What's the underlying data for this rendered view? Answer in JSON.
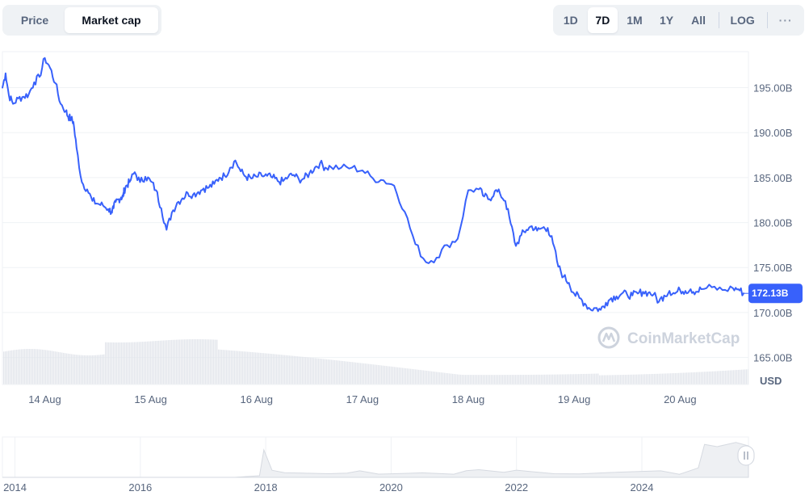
{
  "tabs": {
    "price_label": "Price",
    "market_cap_label": "Market cap"
  },
  "ranges": {
    "d1": "1D",
    "d7": "7D",
    "m1": "1M",
    "y1": "1Y",
    "all": "All",
    "log": "LOG",
    "more": "···"
  },
  "colors": {
    "line": "#3861fb",
    "volume": "#e3e6ec",
    "grid": "#eff2f5"
  },
  "watermark": "CoinMarketCap",
  "currency_unit": "USD",
  "current_value_label": "172.13B",
  "chart_data": [
    {
      "type": "line",
      "ylim": [
        162,
        199
      ],
      "y_ticks": [
        "195.00B",
        "190.00B",
        "185.00B",
        "180.00B",
        "175.00B",
        "170.00B",
        "165.00B"
      ],
      "y_tick_values": [
        195,
        190,
        185,
        180,
        175,
        170,
        165
      ],
      "x_ticks": [
        "14 Aug",
        "15 Aug",
        "16 Aug",
        "17 Aug",
        "18 Aug",
        "19 Aug",
        "20 Aug"
      ],
      "x_tick_positions": [
        0.4,
        1.4,
        2.4,
        3.4,
        4.4,
        5.4,
        6.4
      ],
      "x_range": [
        0,
        7
      ],
      "x": [
        0.0,
        0.03,
        0.06,
        0.1,
        0.15,
        0.2,
        0.25,
        0.3,
        0.35,
        0.4,
        0.45,
        0.5,
        0.55,
        0.6,
        0.62,
        0.65,
        0.67,
        0.7,
        0.75,
        0.8,
        0.85,
        0.9,
        0.95,
        1.0,
        1.03,
        1.05,
        1.07,
        1.1,
        1.12,
        1.14,
        1.15,
        1.17,
        1.2,
        1.25,
        1.3,
        1.35,
        1.4,
        1.45,
        1.5,
        1.55,
        1.6,
        1.65,
        1.7,
        1.75,
        1.8,
        1.85,
        1.9,
        1.95,
        2.0,
        2.05,
        2.1,
        2.15,
        2.2,
        2.25,
        2.3,
        2.35,
        2.4,
        2.45,
        2.5,
        2.55,
        2.6,
        2.65,
        2.7,
        2.75,
        2.8,
        2.85,
        2.9,
        2.95,
        3.0,
        3.05,
        3.1,
        3.2,
        3.3,
        3.4,
        3.5,
        3.6,
        3.7,
        3.8,
        3.9,
        4.0,
        4.1,
        4.2,
        4.3,
        4.4,
        4.5,
        4.55,
        4.6,
        4.65,
        4.7,
        4.75,
        4.8,
        4.85,
        4.9,
        4.95,
        5.0,
        5.05,
        5.1,
        5.15,
        5.2,
        5.25,
        5.3,
        5.35,
        5.4,
        5.45,
        5.5,
        5.55,
        5.6,
        5.65,
        5.7,
        5.75,
        5.8,
        5.85,
        5.9,
        5.95,
        6.0,
        6.05,
        6.1,
        6.15,
        6.2,
        6.25,
        6.3,
        6.35,
        6.4,
        6.45,
        6.5,
        6.55,
        6.6,
        6.7,
        6.8,
        6.9,
        6.95,
        7.0
      ],
      "y": [
        195.0,
        196.6,
        194.2,
        193.2,
        193.8,
        194.0,
        194.3,
        195.6,
        196.2,
        198.3,
        197.2,
        195.5,
        193.2,
        192.4,
        191.8,
        191.5,
        191.2,
        188.3,
        184.5,
        183.7,
        182.4,
        182.1,
        181.9,
        181.5,
        181.2,
        181.6,
        182.3,
        182.6,
        182.8,
        182.9,
        183.6,
        184.1,
        184.5,
        185.6,
        184.5,
        185.1,
        184.6,
        183.6,
        181.6,
        179.2,
        181.1,
        182.2,
        182.7,
        183.3,
        183.1,
        183.4,
        183.8,
        183.9,
        184.3,
        185.0,
        185.2,
        186.1,
        186.9,
        185.7,
        185.1,
        184.9,
        185.1,
        185.2,
        185.2,
        185.0,
        184.6,
        184.6,
        185.1,
        185.3,
        184.8,
        184.9,
        185.5,
        186.1,
        186.6,
        186.1,
        186.2,
        186.1,
        186.1,
        185.8,
        184.9,
        184.7,
        184.1,
        181.2,
        177.6,
        175.6,
        176.1,
        177.5,
        178.2,
        183.6,
        183.7,
        182.9,
        182.6,
        183.5,
        183.2,
        182.4,
        179.9,
        177.4,
        178.6,
        179.2,
        179.6,
        179.1,
        179.4,
        179.4,
        177.7,
        175.1,
        174.0,
        173.3,
        172.1,
        171.6,
        171.0,
        170.4,
        170.5,
        170.3,
        171.1,
        171.6,
        171.8,
        172.1,
        172.0,
        171.9,
        172.1,
        172.3,
        172.2,
        172.0,
        171.2,
        171.9,
        172.4,
        172.1,
        172.5,
        172.4,
        172.6,
        172.3,
        172.6,
        172.8,
        172.5,
        172.7,
        172.6,
        172.13
      ]
    },
    {
      "type": "area",
      "x_ticks": [
        "2014",
        "2016",
        "2018",
        "2020",
        "2022",
        "2024"
      ],
      "x_tick_positions": [
        2014,
        2016,
        2018,
        2020,
        2022,
        2024
      ],
      "x_range": [
        2013.8,
        2025.7
      ],
      "x": [
        2013.8,
        2014.5,
        2015.0,
        2015.5,
        2016.0,
        2016.5,
        2017.0,
        2017.5,
        2017.9,
        2017.97,
        2018.1,
        2018.3,
        2018.6,
        2019.0,
        2019.3,
        2019.5,
        2019.8,
        2020.0,
        2020.5,
        2021.0,
        2021.2,
        2021.4,
        2021.8,
        2022.0,
        2022.3,
        2022.6,
        2023.0,
        2023.5,
        2024.0,
        2024.3,
        2024.6,
        2024.9,
        2025.0,
        2025.2,
        2025.5,
        2025.7
      ],
      "y": [
        0.0,
        0.0,
        0.0,
        0.0,
        0.0,
        0.0,
        0.0,
        0.0,
        0.04,
        0.68,
        0.18,
        0.13,
        0.09,
        0.08,
        0.12,
        0.15,
        0.1,
        0.09,
        0.1,
        0.1,
        0.17,
        0.2,
        0.15,
        0.18,
        0.12,
        0.1,
        0.11,
        0.12,
        0.15,
        0.16,
        0.1,
        0.22,
        0.82,
        0.75,
        0.85,
        0.8
      ]
    }
  ]
}
